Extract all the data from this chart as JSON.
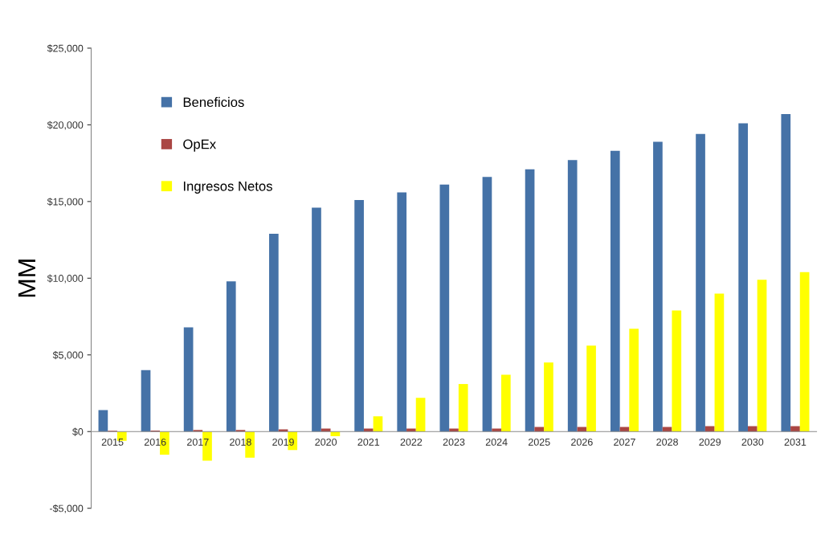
{
  "chart_data": {
    "type": "bar",
    "ylabel": "MM",
    "categories": [
      "2015",
      "2016",
      "2017",
      "2018",
      "2019",
      "2020",
      "2021",
      "2022",
      "2023",
      "2024",
      "2025",
      "2026",
      "2027",
      "2028",
      "2029",
      "2030",
      "2031"
    ],
    "series": [
      {
        "name": "Beneficios",
        "color": "#4572a7",
        "values": [
          1400,
          4000,
          6800,
          9800,
          12900,
          14600,
          15100,
          15600,
          16100,
          16600,
          17100,
          17700,
          18300,
          18900,
          19400,
          20100,
          20700
        ]
      },
      {
        "name": "OpEx",
        "color": "#aa4643",
        "values": [
          50,
          60,
          100,
          100,
          150,
          200,
          200,
          200,
          200,
          200,
          300,
          300,
          300,
          300,
          350,
          350,
          350
        ]
      },
      {
        "name": "Ingresos Netos",
        "color": "#ffff00",
        "values": [
          -600,
          -1500,
          -1900,
          -1700,
          -1200,
          -300,
          1000,
          2200,
          3100,
          3700,
          4500,
          5600,
          6700,
          7900,
          9000,
          9900,
          10400
        ]
      }
    ],
    "ylim": [
      -5000,
      25000
    ],
    "yticks": [
      {
        "value": -5000,
        "label": "-$5,000"
      },
      {
        "value": 0,
        "label": "$0"
      },
      {
        "value": 5000,
        "label": "$5,000"
      },
      {
        "value": 10000,
        "label": "$10,000"
      },
      {
        "value": 15000,
        "label": "$15,000"
      },
      {
        "value": 20000,
        "label": "$20,000"
      },
      {
        "value": 25000,
        "label": "$25,000"
      }
    ],
    "grid": false,
    "legend": "top left"
  }
}
